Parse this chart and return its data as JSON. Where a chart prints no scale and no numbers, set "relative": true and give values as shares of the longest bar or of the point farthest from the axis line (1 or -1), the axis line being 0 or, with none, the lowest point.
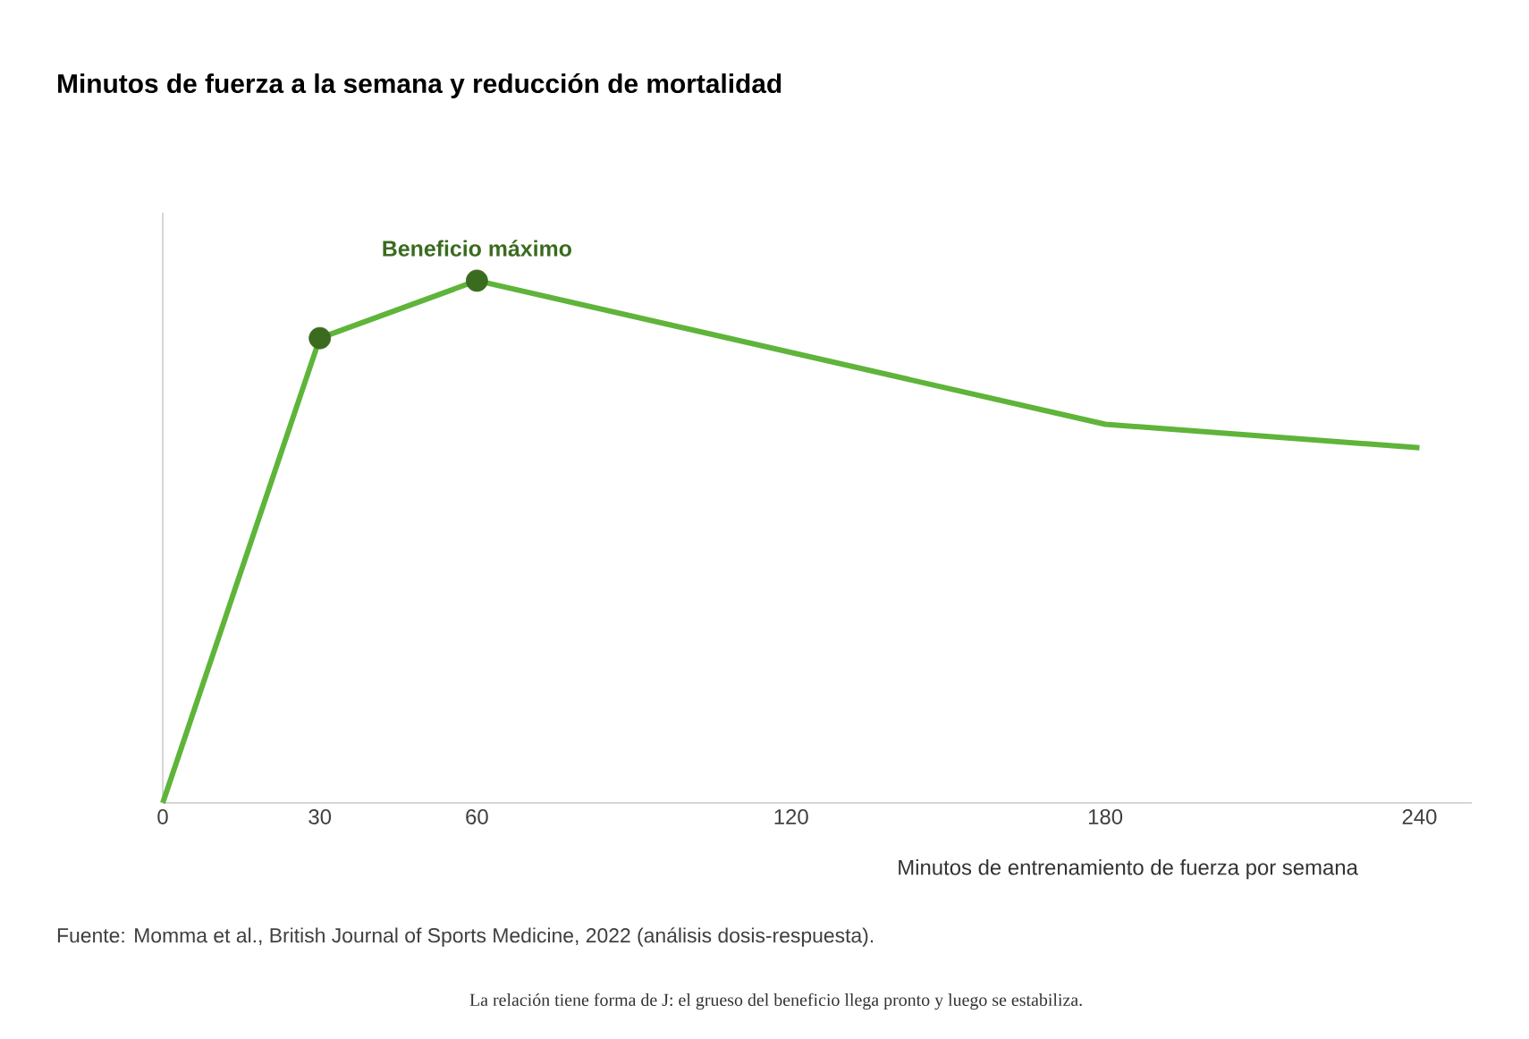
{
  "chart_data": {
    "type": "line",
    "title": "Minutos de fuerza a la semana y reducción de mortalidad",
    "xlabel": "Minutos de entrenamiento de fuerza por semana",
    "x": [
      0,
      30,
      60,
      180,
      240
    ],
    "relative": true,
    "xlim": [
      0,
      250
    ],
    "xticks": [
      0,
      30,
      60,
      120,
      180,
      240
    ],
    "series": [
      {
        "color": "#5fb43a",
        "values": [
          0,
          0.89,
          1,
          0.725,
          0.68
        ],
        "marker": "none"
      },
      {
        "type": "scatter",
        "color": "#3a6b1f",
        "x": [
          30,
          60
        ],
        "values": [
          0.89,
          1
        ],
        "marker": "circle"
      }
    ],
    "annotations": [
      {
        "text": "Beneficio máximo",
        "x": 60,
        "y": 1
      },
      "Fuente: Momma et al., British Journal of Sports Medicine, 2022 (análisis dosis-respuesta).",
      "La relación tiene forma de J: el grueso del beneficio llega pronto y luego se estabiliza."
    ]
  }
}
